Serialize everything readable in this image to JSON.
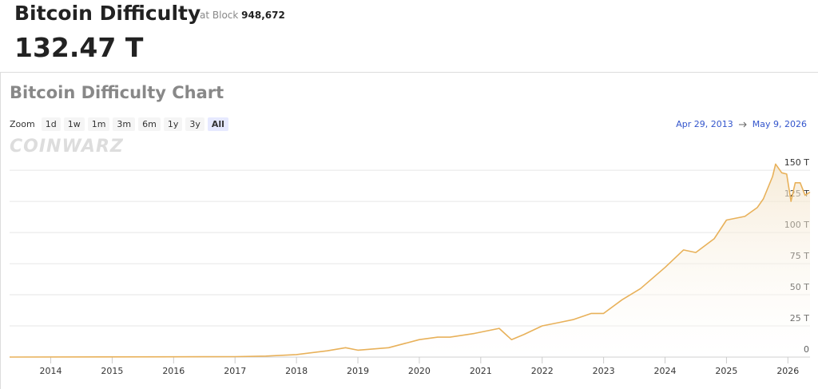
{
  "header": {
    "title": "Bitcoin Difficulty",
    "block_prefix": "at Block",
    "block": "948,672",
    "value": "132.47 T"
  },
  "chart_data": {
    "type": "line",
    "title": "Bitcoin Difficulty Chart",
    "zoom_label": "Zoom",
    "zoom_options": [
      "1d",
      "1w",
      "1m",
      "3m",
      "6m",
      "1y",
      "3y",
      "All"
    ],
    "selected_zoom": 7,
    "range_start": "Apr 29, 2013",
    "range_end": "May 9, 2026",
    "watermark": "COINWARZ",
    "color": "#e8b15a",
    "x": [
      2013.33,
      2016,
      2017,
      2017.5,
      2018,
      2018.5,
      2018.8,
      2019.0,
      2019.5,
      2020.0,
      2020.3,
      2020.5,
      2020.9,
      2021.3,
      2021.5,
      2021.7,
      2022.0,
      2022.3,
      2022.5,
      2022.8,
      2023.0,
      2023.3,
      2023.6,
      2024.0,
      2024.3,
      2024.5,
      2024.8,
      2025.0,
      2025.3,
      2025.5,
      2025.6,
      2025.75,
      2025.8,
      2025.9,
      2025.98,
      2026.05,
      2026.12,
      2026.2,
      2026.28,
      2026.36
    ],
    "values": [
      0.01,
      0.2,
      0.3,
      0.8,
      2,
      5,
      7.5,
      5.5,
      7.5,
      14,
      16,
      16,
      19,
      23,
      14,
      18,
      25,
      28,
      30,
      35,
      35,
      46,
      55,
      72,
      86,
      84,
      95,
      110,
      113,
      120,
      127,
      145,
      155,
      148,
      147,
      125,
      140,
      140,
      130,
      132.47
    ],
    "xlim": [
      2013.33,
      2026.36
    ],
    "xticks": [
      2014,
      2015,
      2016,
      2017,
      2018,
      2019,
      2020,
      2021,
      2022,
      2023,
      2024,
      2025,
      2026
    ],
    "ylim": [
      0,
      170
    ],
    "yticks": [
      0,
      {
        "value": 25,
        "label": "25 T"
      },
      {
        "value": 50,
        "label": "50 T"
      },
      {
        "value": 75,
        "label": "75 T"
      },
      {
        "value": 100,
        "label": "100 T"
      },
      {
        "value": 125,
        "label": "125 T"
      },
      {
        "value": 150,
        "label": "150 T"
      }
    ],
    "grid": true
  }
}
